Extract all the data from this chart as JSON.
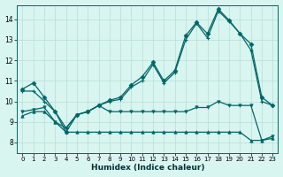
{
  "xlabel": "Humidex (Indice chaleur)",
  "bg_color": "#d8f5f0",
  "line_color": "#006666",
  "grid_color": "#b8deda",
  "xlim": [
    -0.5,
    23.5
  ],
  "ylim": [
    7.5,
    14.7
  ],
  "yticks": [
    8,
    9,
    10,
    11,
    12,
    13,
    14
  ],
  "xticks": [
    0,
    1,
    2,
    3,
    4,
    5,
    6,
    7,
    8,
    9,
    10,
    11,
    12,
    13,
    14,
    15,
    16,
    17,
    18,
    19,
    20,
    21,
    22,
    23
  ],
  "line1": [
    10.6,
    10.9,
    10.2,
    9.5,
    8.5,
    9.35,
    9.5,
    9.8,
    10.05,
    10.2,
    10.8,
    11.2,
    11.9,
    11.0,
    11.5,
    13.2,
    13.85,
    13.3,
    14.5,
    13.95,
    13.3,
    12.8,
    10.2,
    9.8
  ],
  "line2": [
    10.5,
    10.5,
    10.0,
    9.5,
    8.7,
    9.35,
    9.5,
    9.8,
    10.0,
    10.1,
    10.7,
    11.0,
    11.8,
    10.9,
    11.4,
    13.0,
    13.8,
    13.1,
    14.4,
    13.9,
    13.3,
    12.5,
    10.0,
    9.8
  ],
  "line3": [
    9.5,
    9.6,
    9.7,
    9.0,
    8.7,
    9.35,
    9.5,
    9.8,
    9.5,
    9.5,
    9.5,
    9.5,
    9.5,
    9.5,
    9.5,
    9.5,
    9.7,
    9.7,
    10.0,
    9.8,
    9.8,
    9.8,
    8.1,
    8.3
  ],
  "line4": [
    9.3,
    9.5,
    9.5,
    9.0,
    8.5,
    8.5,
    8.5,
    8.5,
    8.5,
    8.5,
    8.5,
    8.5,
    8.5,
    8.5,
    8.5,
    8.5,
    8.5,
    8.5,
    8.5,
    8.5,
    8.5,
    8.1,
    8.1,
    8.2
  ]
}
